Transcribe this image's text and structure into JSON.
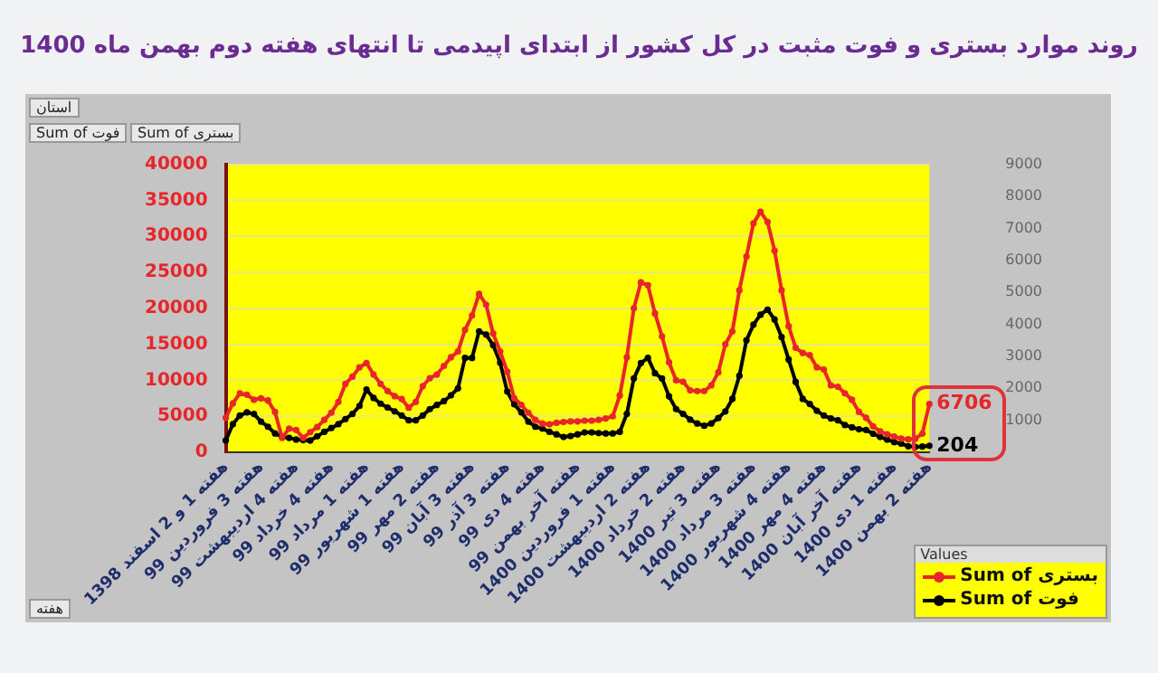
{
  "chart_data": {
    "type": "line",
    "title": "روند موارد بستری و فوت مثبت در کل کشور از ابتدای اپیدمی تا انتهای هفته دوم بهمن ماه 1400",
    "categories": [
      "هفته 1 و 2 اسفند 1398",
      null,
      null,
      null,
      null,
      "هفته 3 فروردین 99",
      null,
      null,
      null,
      null,
      "هفته 4 اردیبهشت 99",
      null,
      null,
      null,
      null,
      "هفته 4 خرداد 99",
      null,
      null,
      null,
      null,
      "هفته 1 مرداد 99",
      null,
      null,
      null,
      null,
      "هفته 1 شهریور 99",
      null,
      null,
      null,
      null,
      "هفته 2 مهر 99",
      null,
      null,
      null,
      null,
      "هفته 3 آبان 99",
      null,
      null,
      null,
      null,
      "هفته 3 آذر 99",
      null,
      null,
      null,
      null,
      "هفته 4 دی 99",
      null,
      null,
      null,
      null,
      "هفته آخر بهمن 99",
      null,
      null,
      null,
      null,
      "هفته 1 فروردین 1400",
      null,
      null,
      null,
      null,
      "هفته 2 اردیبهشت 1400",
      null,
      null,
      null,
      null,
      "هفته 2 خرداد 1400",
      null,
      null,
      null,
      null,
      "هفته 3 تیر 1400",
      null,
      null,
      null,
      null,
      "هفته 3 مرداد 1400",
      null,
      null,
      null,
      null,
      "هفته 4 شهریور 1400",
      null,
      null,
      null,
      null,
      "هفته 4 مهر 1400",
      null,
      null,
      null,
      null,
      "هفته آخر آبان 1400",
      null,
      null,
      null,
      null,
      "هفته 1 دی 1400",
      null,
      null,
      null,
      null,
      "هفته 2 بهمن 1400"
    ],
    "series": [
      {
        "name": "Sum of بستری",
        "color": "#e8262a",
        "values": [
          4800,
          6800,
          8200,
          8000,
          7300,
          7500,
          7200,
          5600,
          2000,
          3300,
          3100,
          2000,
          2800,
          3500,
          4500,
          5500,
          7000,
          9500,
          10500,
          11800,
          12400,
          10800,
          9500,
          8500,
          7800,
          7400,
          6200,
          7000,
          9200,
          10300,
          10800,
          12000,
          13200,
          14000,
          17000,
          19000,
          22000,
          20500,
          16500,
          14000,
          11200,
          7500,
          6600,
          5500,
          4500,
          4000,
          3900,
          4100,
          4200,
          4300,
          4300,
          4400,
          4400,
          4500,
          4700,
          5000,
          7900,
          13200,
          20000,
          23600,
          23200,
          19300,
          16100,
          12500,
          10000,
          9800,
          8600,
          8500,
          8500,
          9300,
          11100,
          15000,
          16800,
          22500,
          27200,
          31800,
          33400,
          32000,
          28000,
          22500,
          17500,
          14500,
          13800,
          13500,
          11800,
          11500,
          9300,
          9100,
          8200,
          7300,
          5600,
          4800,
          3600,
          2900,
          2500,
          2200,
          1900,
          1800,
          1900,
          2600,
          6706
        ],
        "value_labels": [
          null,
          null,
          null,
          null,
          null,
          null,
          null,
          null,
          null,
          null,
          null,
          null,
          null,
          null,
          null,
          null,
          null,
          null,
          null,
          null,
          null,
          null,
          null,
          null,
          null,
          null,
          null,
          null,
          null,
          null,
          null,
          null,
          null,
          null,
          null,
          null,
          null,
          null,
          null,
          null,
          null,
          null,
          null,
          null,
          null,
          null,
          null,
          null,
          null,
          null,
          null,
          null,
          null,
          null,
          null,
          null,
          null,
          null,
          null,
          null,
          null,
          null,
          null,
          null,
          null,
          null,
          null,
          null,
          null,
          null,
          null,
          null,
          null,
          null,
          null,
          null,
          null,
          null,
          null,
          null,
          null,
          null,
          null,
          null,
          null,
          null,
          null,
          null,
          null,
          null,
          null,
          null,
          null,
          null,
          null,
          null,
          null,
          null,
          null,
          null,
          "6706"
        ]
      },
      {
        "name": "Sum of فوت",
        "color": "#000000",
        "axis": "y2",
        "values": [
          370,
          880,
          1150,
          1250,
          1200,
          960,
          800,
          590,
          480,
          450,
          400,
          380,
          370,
          500,
          640,
          760,
          880,
          1040,
          1200,
          1450,
          1960,
          1700,
          1520,
          1400,
          1280,
          1150,
          1000,
          1000,
          1150,
          1350,
          1480,
          1600,
          1780,
          2000,
          2950,
          2950,
          3780,
          3680,
          3350,
          2800,
          1900,
          1500,
          1250,
          960,
          800,
          740,
          640,
          560,
          480,
          510,
          560,
          620,
          620,
          600,
          590,
          590,
          640,
          1200,
          2310,
          2790,
          2950,
          2470,
          2310,
          1750,
          1350,
          1200,
          1020,
          900,
          830,
          900,
          1070,
          1280,
          1670,
          2390,
          3500,
          3990,
          4300,
          4460,
          4150,
          3600,
          2900,
          2200,
          1670,
          1510,
          1300,
          1150,
          1060,
          1000,
          850,
          780,
          720,
          700,
          580,
          480,
          400,
          320,
          270,
          190,
          170,
          180,
          204
        ],
        "value_labels": [
          null,
          null,
          null,
          null,
          null,
          null,
          null,
          null,
          null,
          null,
          null,
          null,
          null,
          null,
          null,
          null,
          null,
          null,
          null,
          null,
          null,
          null,
          null,
          null,
          null,
          null,
          null,
          null,
          null,
          null,
          null,
          null,
          null,
          null,
          null,
          null,
          null,
          null,
          null,
          null,
          null,
          null,
          null,
          null,
          null,
          null,
          null,
          null,
          null,
          null,
          null,
          null,
          null,
          null,
          null,
          null,
          null,
          null,
          null,
          null,
          null,
          null,
          null,
          null,
          null,
          null,
          null,
          null,
          null,
          null,
          null,
          null,
          null,
          null,
          null,
          null,
          null,
          null,
          null,
          null,
          null,
          null,
          null,
          null,
          null,
          null,
          null,
          null,
          null,
          null,
          null,
          null,
          null,
          null,
          null,
          null,
          null,
          null,
          null,
          null,
          "204"
        ]
      }
    ],
    "ylim": [
      0,
      40000
    ],
    "yticks": [
      0,
      5000,
      10000,
      15000,
      20000,
      25000,
      30000,
      35000,
      40000
    ],
    "y2lim": [
      0,
      9000
    ],
    "y2ticks": [
      1000,
      2000,
      3000,
      4000,
      5000,
      6000,
      7000,
      8000,
      9000
    ],
    "grid": "y",
    "legend": "bottom right",
    "legend_title": "Values",
    "marker": "circle",
    "annotations": [
      "استان",
      "Sum of فوت",
      "Sum of بستری",
      "هفته"
    ]
  }
}
